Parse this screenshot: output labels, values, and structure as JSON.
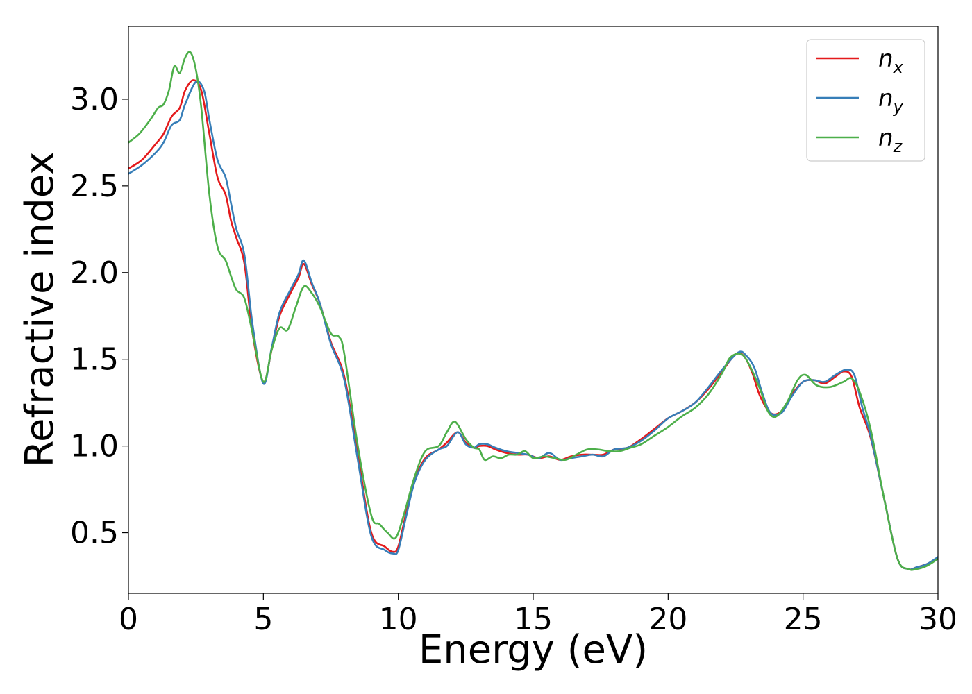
{
  "chart_data": {
    "type": "line",
    "xlabel": "Energy (eV)",
    "ylabel": "Refractive index",
    "xlim": [
      0,
      30
    ],
    "ylim": [
      0.15,
      3.42
    ],
    "xticks": [
      0,
      5,
      10,
      15,
      20,
      25,
      30
    ],
    "xtick_labels": [
      "0",
      "5",
      "10",
      "15",
      "20",
      "25",
      "30"
    ],
    "yticks": [
      0.5,
      1.0,
      1.5,
      2.0,
      2.5,
      3.0
    ],
    "ytick_labels": [
      "0.5",
      "1.0",
      "1.5",
      "2.0",
      "2.5",
      "3.0"
    ],
    "grid": false,
    "legend_position": "top-right",
    "series": [
      {
        "name": "n",
        "subscript": "x",
        "color": "#e41a1c",
        "x": [
          0,
          0.5,
          1,
          1.3,
          1.6,
          1.9,
          2.1,
          2.4,
          2.7,
          3.0,
          3.3,
          3.6,
          3.8,
          4.0,
          4.3,
          4.6,
          5.0,
          5.3,
          5.6,
          6.0,
          6.3,
          6.5,
          6.8,
          7.1,
          7.5,
          8.0,
          8.5,
          9.0,
          9.5,
          9.8,
          10.0,
          10.3,
          10.6,
          11.0,
          11.5,
          11.8,
          12.2,
          12.5,
          12.8,
          13.0,
          13.3,
          13.6,
          14.0,
          14.4,
          14.8,
          15.2,
          15.6,
          16.0,
          16.4,
          16.8,
          17.2,
          17.6,
          18.0,
          18.5,
          19.0,
          19.5,
          20.0,
          20.5,
          21.0,
          21.5,
          22.0,
          22.5,
          22.8,
          23.1,
          23.4,
          23.8,
          24.2,
          24.6,
          25.0,
          25.4,
          25.8,
          26.2,
          26.5,
          26.8,
          27.1,
          27.5,
          28.0,
          28.5,
          28.9,
          29.2,
          29.6,
          30.0
        ],
        "y": [
          2.6,
          2.65,
          2.74,
          2.8,
          2.9,
          2.95,
          3.05,
          3.11,
          3.05,
          2.8,
          2.55,
          2.45,
          2.3,
          2.2,
          2.05,
          1.65,
          1.37,
          1.55,
          1.75,
          1.88,
          1.97,
          2.05,
          1.93,
          1.82,
          1.6,
          1.4,
          0.95,
          0.5,
          0.42,
          0.39,
          0.42,
          0.62,
          0.8,
          0.93,
          0.98,
          1.02,
          1.08,
          1.02,
          0.99,
          1.0,
          1.0,
          0.98,
          0.96,
          0.95,
          0.95,
          0.93,
          0.94,
          0.92,
          0.94,
          0.95,
          0.95,
          0.95,
          0.98,
          0.99,
          1.04,
          1.1,
          1.16,
          1.2,
          1.25,
          1.33,
          1.43,
          1.53,
          1.52,
          1.43,
          1.29,
          1.19,
          1.2,
          1.3,
          1.37,
          1.38,
          1.36,
          1.4,
          1.43,
          1.4,
          1.22,
          1.05,
          0.7,
          0.35,
          0.29,
          0.3,
          0.32,
          0.35
        ]
      },
      {
        "name": "n",
        "subscript": "y",
        "color": "#377eb8",
        "x": [
          0,
          0.5,
          1,
          1.3,
          1.6,
          1.9,
          2.1,
          2.5,
          2.8,
          3.0,
          3.3,
          3.6,
          3.8,
          4.0,
          4.3,
          4.6,
          5.0,
          5.3,
          5.6,
          6.0,
          6.3,
          6.5,
          6.8,
          7.1,
          7.5,
          8.0,
          8.5,
          9.0,
          9.5,
          9.8,
          10.0,
          10.3,
          10.6,
          11.0,
          11.5,
          11.8,
          12.2,
          12.5,
          12.8,
          13.0,
          13.3,
          13.6,
          14.0,
          14.4,
          14.8,
          15.2,
          15.6,
          16.0,
          16.4,
          16.8,
          17.2,
          17.6,
          18.0,
          18.5,
          19.0,
          19.5,
          20.0,
          20.5,
          21.0,
          21.5,
          22.0,
          22.6,
          22.9,
          23.2,
          23.5,
          23.8,
          24.2,
          24.6,
          25.0,
          25.4,
          25.8,
          26.2,
          26.6,
          26.9,
          27.2,
          27.5,
          28.0,
          28.5,
          28.9,
          29.2,
          29.6,
          30.0
        ],
        "y": [
          2.57,
          2.62,
          2.69,
          2.75,
          2.85,
          2.88,
          2.97,
          3.1,
          3.05,
          2.88,
          2.65,
          2.55,
          2.4,
          2.25,
          2.1,
          1.7,
          1.36,
          1.56,
          1.77,
          1.9,
          1.99,
          2.07,
          1.94,
          1.82,
          1.59,
          1.38,
          0.92,
          0.48,
          0.4,
          0.38,
          0.4,
          0.6,
          0.79,
          0.92,
          0.98,
          1.0,
          1.08,
          1.01,
          0.99,
          1.01,
          1.01,
          0.99,
          0.97,
          0.96,
          0.95,
          0.93,
          0.96,
          0.92,
          0.93,
          0.94,
          0.95,
          0.94,
          0.98,
          0.99,
          1.03,
          1.09,
          1.16,
          1.2,
          1.25,
          1.34,
          1.44,
          1.54,
          1.52,
          1.45,
          1.3,
          1.19,
          1.19,
          1.29,
          1.37,
          1.38,
          1.37,
          1.41,
          1.44,
          1.41,
          1.22,
          1.06,
          0.7,
          0.35,
          0.29,
          0.3,
          0.32,
          0.36
        ]
      },
      {
        "name": "n",
        "subscript": "z",
        "color": "#4daf4a",
        "x": [
          0,
          0.4,
          0.8,
          1.1,
          1.3,
          1.5,
          1.7,
          1.9,
          2.1,
          2.3,
          2.5,
          2.7,
          3.0,
          3.3,
          3.6,
          3.8,
          4.0,
          4.3,
          4.6,
          5.0,
          5.3,
          5.6,
          5.9,
          6.2,
          6.5,
          6.8,
          7.1,
          7.5,
          7.8,
          8.0,
          8.5,
          9.0,
          9.3,
          9.6,
          9.9,
          10.2,
          10.6,
          11.0,
          11.5,
          11.8,
          12.1,
          12.5,
          12.8,
          13.0,
          13.2,
          13.5,
          13.8,
          14.1,
          14.4,
          14.7,
          15.0,
          15.4,
          15.8,
          16.2,
          16.6,
          17.0,
          17.4,
          17.8,
          18.2,
          18.6,
          19.0,
          19.5,
          20.0,
          20.5,
          21.0,
          21.5,
          22.0,
          22.3,
          22.7,
          23.0,
          23.4,
          23.7,
          24.0,
          24.4,
          24.8,
          25.1,
          25.5,
          26.0,
          26.5,
          26.8,
          27.1,
          27.5,
          28.0,
          28.5,
          28.9,
          29.2,
          29.6,
          30.0
        ],
        "y": [
          2.75,
          2.8,
          2.88,
          2.95,
          2.97,
          3.05,
          3.19,
          3.15,
          3.24,
          3.27,
          3.17,
          2.95,
          2.45,
          2.15,
          2.07,
          1.98,
          1.9,
          1.85,
          1.65,
          1.37,
          1.55,
          1.68,
          1.67,
          1.8,
          1.92,
          1.88,
          1.8,
          1.65,
          1.63,
          1.53,
          1.0,
          0.6,
          0.55,
          0.5,
          0.47,
          0.6,
          0.82,
          0.97,
          1.0,
          1.08,
          1.14,
          1.04,
          0.99,
          0.98,
          0.92,
          0.94,
          0.93,
          0.95,
          0.95,
          0.97,
          0.93,
          0.94,
          0.93,
          0.92,
          0.95,
          0.98,
          0.98,
          0.97,
          0.97,
          0.99,
          1.01,
          1.06,
          1.11,
          1.17,
          1.22,
          1.3,
          1.42,
          1.51,
          1.53,
          1.47,
          1.33,
          1.2,
          1.17,
          1.25,
          1.38,
          1.41,
          1.35,
          1.34,
          1.37,
          1.39,
          1.31,
          1.1,
          0.7,
          0.35,
          0.29,
          0.29,
          0.31,
          0.35
        ]
      }
    ]
  }
}
